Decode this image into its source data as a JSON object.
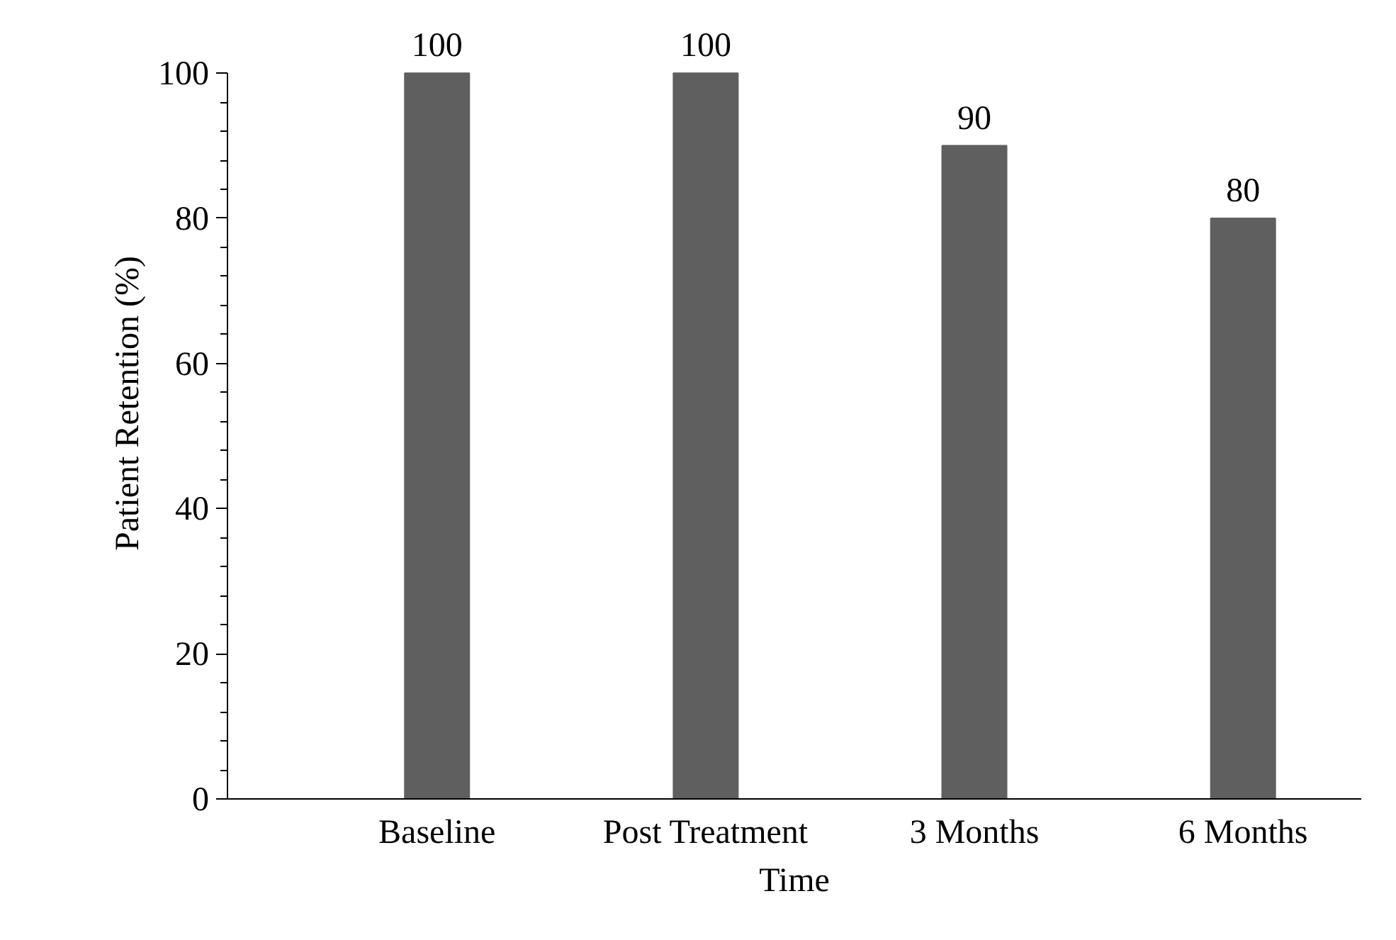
{
  "chart_data": {
    "type": "bar",
    "xlabel": "Time",
    "ylabel": "Patient Retention (%)",
    "categories": [
      "Baseline",
      "Post Treatment",
      "3 Months",
      "6 Months"
    ],
    "values": [
      100,
      100,
      90,
      80
    ],
    "color": "#5f5f5f",
    "ylim": [
      0,
      100
    ],
    "yticks": [
      0,
      20,
      40,
      60,
      80,
      100
    ],
    "grid": false,
    "data_labels": true
  }
}
